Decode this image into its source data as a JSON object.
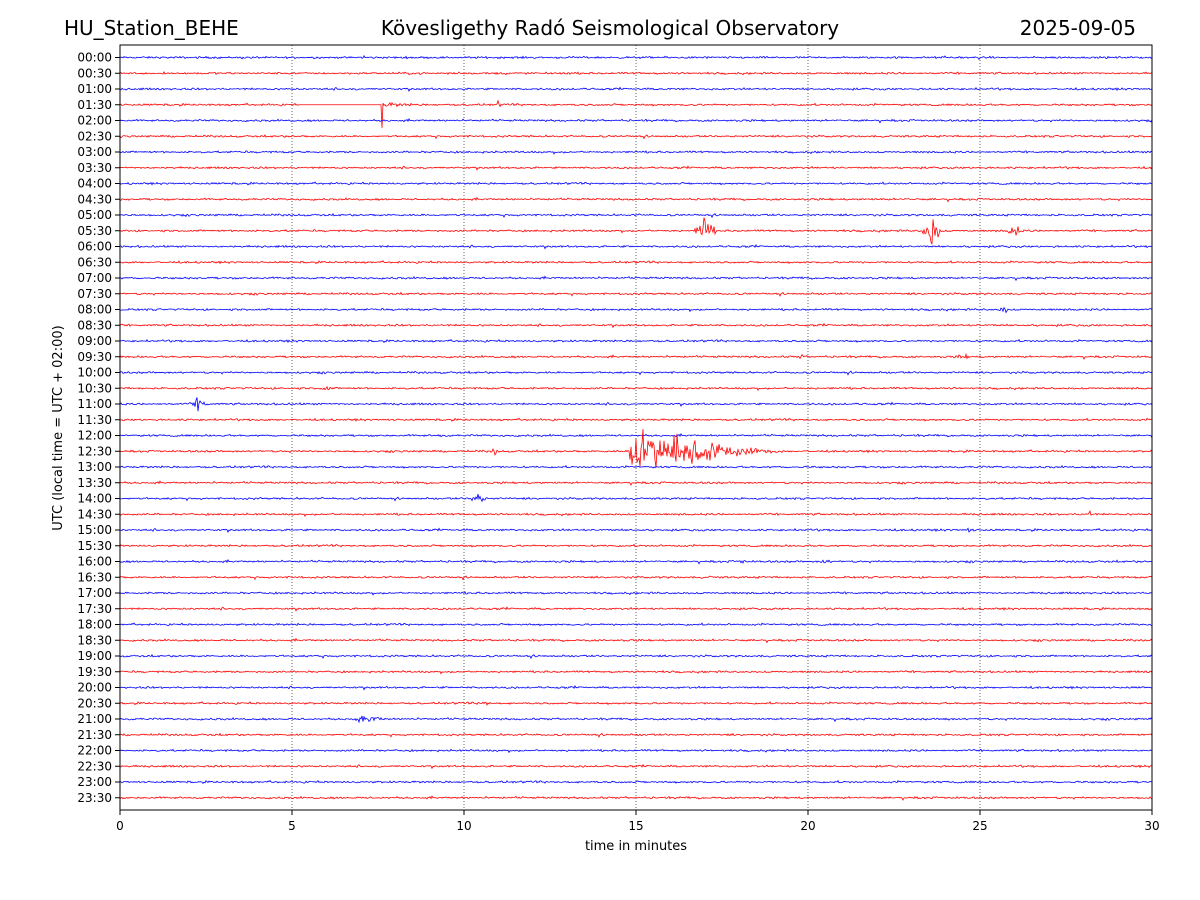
{
  "header": {
    "station": "HU_Station_BEHE",
    "observatory": "Kövesligethy Radó Seismological Observatory",
    "date": "2025-09-05"
  },
  "colors": {
    "even_trace": "#0000ff",
    "odd_trace": "#ff0000",
    "grid": "#000000"
  },
  "chart_data": {
    "type": "line",
    "xlabel": "time in minutes",
    "ylabel": "UTC (local time = UTC + 02:00)",
    "xlim": [
      0,
      30
    ],
    "xticks": [
      0,
      5,
      10,
      15,
      20,
      25,
      30
    ],
    "grid": "vertical dotted at x ticks",
    "rows": [
      "00:00",
      "00:30",
      "01:00",
      "01:30",
      "02:00",
      "02:30",
      "03:00",
      "03:30",
      "04:00",
      "04:30",
      "05:00",
      "05:30",
      "06:00",
      "06:30",
      "07:00",
      "07:30",
      "08:00",
      "08:30",
      "09:00",
      "09:30",
      "10:00",
      "10:30",
      "11:00",
      "11:30",
      "12:00",
      "12:30",
      "13:00",
      "13:30",
      "14:00",
      "14:30",
      "15:00",
      "15:30",
      "16:00",
      "16:30",
      "17:00",
      "17:30",
      "18:00",
      "18:30",
      "19:00",
      "19:30",
      "20:00",
      "20:30",
      "21:00",
      "21:30",
      "22:00",
      "22:30",
      "23:00",
      "23:30"
    ],
    "events": [
      {
        "row": "01:30",
        "minute": 7.6,
        "amplitude": 3.5,
        "duration_min": 3.3,
        "type": "spike"
      },
      {
        "row": "01:30",
        "minute": 11.0,
        "amplitude": 0.4,
        "duration_min": 0.1,
        "type": "blip"
      },
      {
        "row": "05:30",
        "minute": 17.0,
        "amplitude": 2.0,
        "duration_min": 0.3,
        "type": "burst"
      },
      {
        "row": "05:30",
        "minute": 23.6,
        "amplitude": 2.0,
        "duration_min": 0.3,
        "type": "burst"
      },
      {
        "row": "05:30",
        "minute": 26.0,
        "amplitude": 1.1,
        "duration_min": 0.2,
        "type": "burst"
      },
      {
        "row": "08:00",
        "minute": 25.7,
        "amplitude": 0.5,
        "duration_min": 0.2,
        "type": "burst"
      },
      {
        "row": "09:30",
        "minute": 19.8,
        "amplitude": 0.3,
        "duration_min": 0.2,
        "type": "burst"
      },
      {
        "row": "09:30",
        "minute": 24.5,
        "amplitude": 0.6,
        "duration_min": 0.2,
        "type": "burst"
      },
      {
        "row": "10:30",
        "minute": 6.0,
        "amplitude": 0.3,
        "duration_min": 0.4,
        "type": "burst"
      },
      {
        "row": "11:00",
        "minute": 2.3,
        "amplitude": 0.8,
        "duration_min": 0.3,
        "type": "burst"
      },
      {
        "row": "12:00",
        "minute": 9.3,
        "amplitude": 0.3,
        "duration_min": 0.1,
        "type": "burst"
      },
      {
        "row": "12:30",
        "minute": 10.9,
        "amplitude": 0.4,
        "duration_min": 0.2,
        "type": "burst"
      },
      {
        "row": "12:30",
        "minute": 14.8,
        "amplitude": 2.5,
        "duration_min": 4.5,
        "type": "quake"
      },
      {
        "row": "14:00",
        "minute": 10.4,
        "amplitude": 0.8,
        "duration_min": 0.3,
        "type": "burst"
      },
      {
        "row": "14:30",
        "minute": 28.2,
        "amplitude": 0.4,
        "duration_min": 0.2,
        "type": "burst"
      },
      {
        "row": "15:00",
        "minute": 24.7,
        "amplitude": 0.3,
        "duration_min": 0.3,
        "type": "burst"
      },
      {
        "row": "16:00",
        "minute": 18.1,
        "amplitude": 0.3,
        "duration_min": 0.2,
        "type": "burst"
      },
      {
        "row": "16:00",
        "minute": 20.5,
        "amplitude": 0.35,
        "duration_min": 0.3,
        "type": "burst"
      },
      {
        "row": "16:30",
        "minute": 17.2,
        "amplitude": 0.4,
        "duration_min": 0.1,
        "type": "burst"
      },
      {
        "row": "20:30",
        "minute": 10.6,
        "amplitude": 0.3,
        "duration_min": 0.4,
        "type": "burst"
      },
      {
        "row": "21:00",
        "minute": 7.2,
        "amplitude": 0.45,
        "duration_min": 0.8,
        "type": "burst"
      },
      {
        "row": "21:00",
        "minute": 24.0,
        "amplitude": 0.3,
        "duration_min": 0.2,
        "type": "burst"
      },
      {
        "row": "21:30",
        "minute": 17.8,
        "amplitude": 0.3,
        "duration_min": 0.1,
        "type": "burst"
      }
    ]
  }
}
